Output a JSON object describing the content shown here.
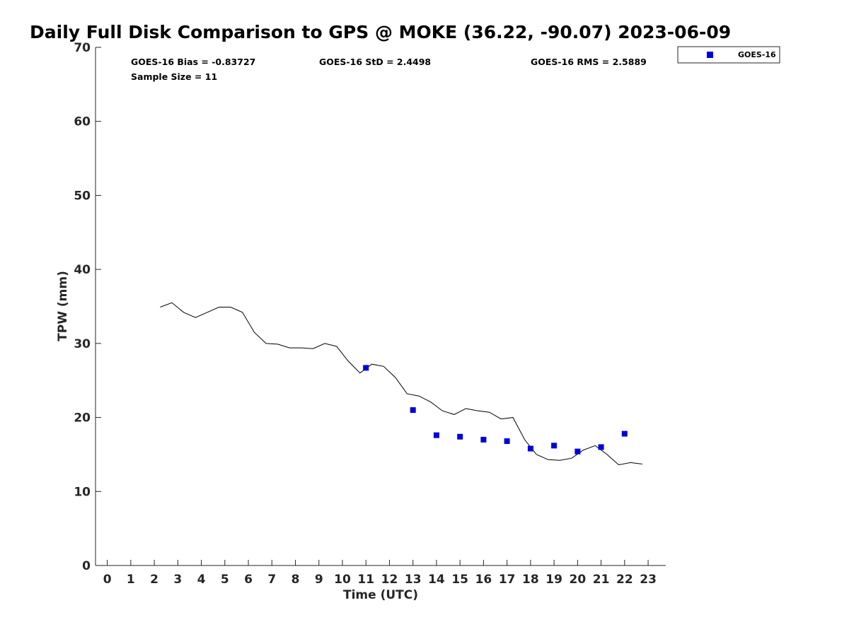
{
  "chart_data": {
    "type": "scatter",
    "title": "Daily Full Disk Comparison to GPS @ MOKE (36.22, -90.07) 2023-06-09",
    "xlabel": "Time (UTC)",
    "ylabel": "TPW (mm)",
    "xlim": [
      -0.5,
      23.75
    ],
    "ylim": [
      0,
      70
    ],
    "x_ticks": [
      0,
      1,
      2,
      3,
      4,
      5,
      6,
      7,
      8,
      9,
      10,
      11,
      12,
      13,
      14,
      15,
      16,
      17,
      18,
      19,
      20,
      21,
      22,
      23
    ],
    "x_tick_labels": [
      "0",
      "1",
      "2",
      "3",
      "4",
      "5",
      "6",
      "7",
      "8",
      "9",
      "10",
      "11",
      "12",
      "13",
      "14",
      "15",
      "16",
      "17",
      "18",
      "19",
      "20",
      "21",
      "22",
      "23"
    ],
    "y_ticks": [
      0,
      10,
      20,
      30,
      40,
      50,
      60,
      70
    ],
    "y_tick_labels": [
      "0",
      "10",
      "20",
      "30",
      "40",
      "50",
      "60",
      "70"
    ],
    "grid": false,
    "legend_position": "top-right, outside",
    "annotations": {
      "bias": "GOES-16 Bias = -0.83727",
      "std": "GOES-16 StD = 2.4498",
      "rms": "GOES-16 RMS = 2.5889",
      "sample_size": "Sample Size = 11"
    },
    "series": [
      {
        "kind": "line",
        "color": "#000000",
        "x": [
          2.25,
          2.75,
          3.25,
          3.75,
          4.25,
          4.75,
          5.25,
          5.75,
          6.25,
          6.75,
          7.25,
          7.75,
          8.25,
          8.75,
          9.25,
          9.75,
          10.25,
          10.75,
          11.25,
          11.75,
          12.25,
          12.75,
          13.25,
          13.75,
          14.25,
          14.75,
          15.25,
          15.75,
          16.25,
          16.75,
          17.25,
          17.75,
          18.25,
          18.75,
          19.25,
          19.75,
          20.25,
          20.75,
          21.25,
          21.75,
          22.25,
          22.75
        ],
        "y": [
          34.9,
          35.5,
          34.2,
          33.5,
          34.2,
          34.9,
          34.9,
          34.2,
          31.5,
          30.0,
          29.9,
          29.4,
          29.4,
          29.3,
          30.0,
          29.6,
          27.6,
          26.0,
          27.2,
          26.9,
          25.4,
          23.2,
          22.9,
          22.1,
          20.9,
          20.4,
          21.2,
          20.9,
          20.7,
          19.8,
          20.0,
          17.0,
          15.0,
          14.3,
          14.2,
          14.5,
          15.6,
          16.2,
          15.0,
          13.6,
          13.9,
          13.7
        ]
      },
      {
        "name": "GOES-16",
        "kind": "scatter",
        "color": "#0000dd",
        "x": [
          11,
          13,
          14,
          15,
          16,
          17,
          18,
          19,
          20,
          21,
          22
        ],
        "y": [
          26.7,
          21.0,
          17.6,
          17.4,
          17.0,
          16.8,
          15.8,
          16.2,
          15.4,
          16.0,
          17.8
        ]
      }
    ]
  }
}
